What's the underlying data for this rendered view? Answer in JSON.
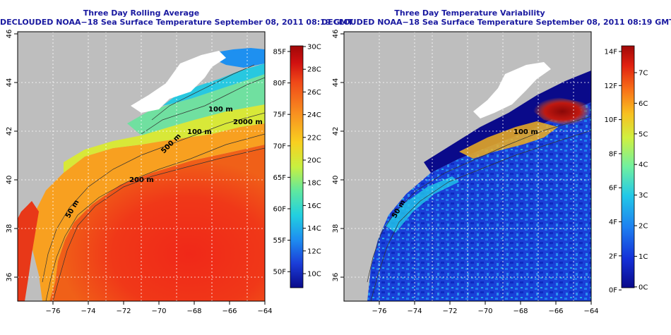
{
  "panels": [
    {
      "title1": "Three Day Rolling Average",
      "title2": "DECLOUDED NOAA−18 Sea Surface Temperature September 08, 2011 08:19 GMT",
      "colorbar_left_labels": [
        "85F",
        "80F",
        "75F",
        "70F",
        "65F",
        "60F",
        "55F",
        "50F"
      ],
      "colorbar_right_labels": [
        "30C",
        "28C",
        "26C",
        "24C",
        "22C",
        "20C",
        "18C",
        "16C",
        "14C",
        "12C",
        "10C"
      ],
      "contour_labels": [
        "100 m",
        "2000 m",
        "100 m",
        "500 m",
        "200 m",
        "50 m"
      ]
    },
    {
      "title1": "Three Day Temperature Variability",
      "title2": "DECLOUDED NOAA−18 Sea Surface Temperature September 08, 2011 08:19 GMT",
      "colorbar_left_labels": [
        "14F",
        "12F",
        "10F",
        "8F",
        "6F",
        "4F",
        "2F",
        "0F"
      ],
      "colorbar_right_labels": [
        "7C",
        "6C",
        "5C",
        "4C",
        "3C",
        "2C",
        "1C",
        "0C"
      ],
      "contour_labels": [
        "100 m",
        "50 m"
      ]
    }
  ],
  "x_ticks": [
    "−76",
    "−74",
    "−72",
    "−70",
    "−68",
    "−66",
    "−64"
  ],
  "y_ticks": [
    "36",
    "38",
    "40",
    "42",
    "44",
    "46"
  ],
  "colors": {
    "land": "#bebebe",
    "title": "#1a1aa0",
    "sst_scale": [
      "#0a0a8a",
      "#1b3dd8",
      "#1e8ff0",
      "#22d0e0",
      "#5fe8a0",
      "#c8f040",
      "#f8d020",
      "#f89020",
      "#f04818",
      "#d01010",
      "#a00808"
    ],
    "var_scale": [
      "#0a0a8a",
      "#1430d8",
      "#1e80f0",
      "#22c8e8",
      "#70f0a0",
      "#d0f040",
      "#f8c020",
      "#f87018",
      "#e02010",
      "#a00808"
    ]
  }
}
